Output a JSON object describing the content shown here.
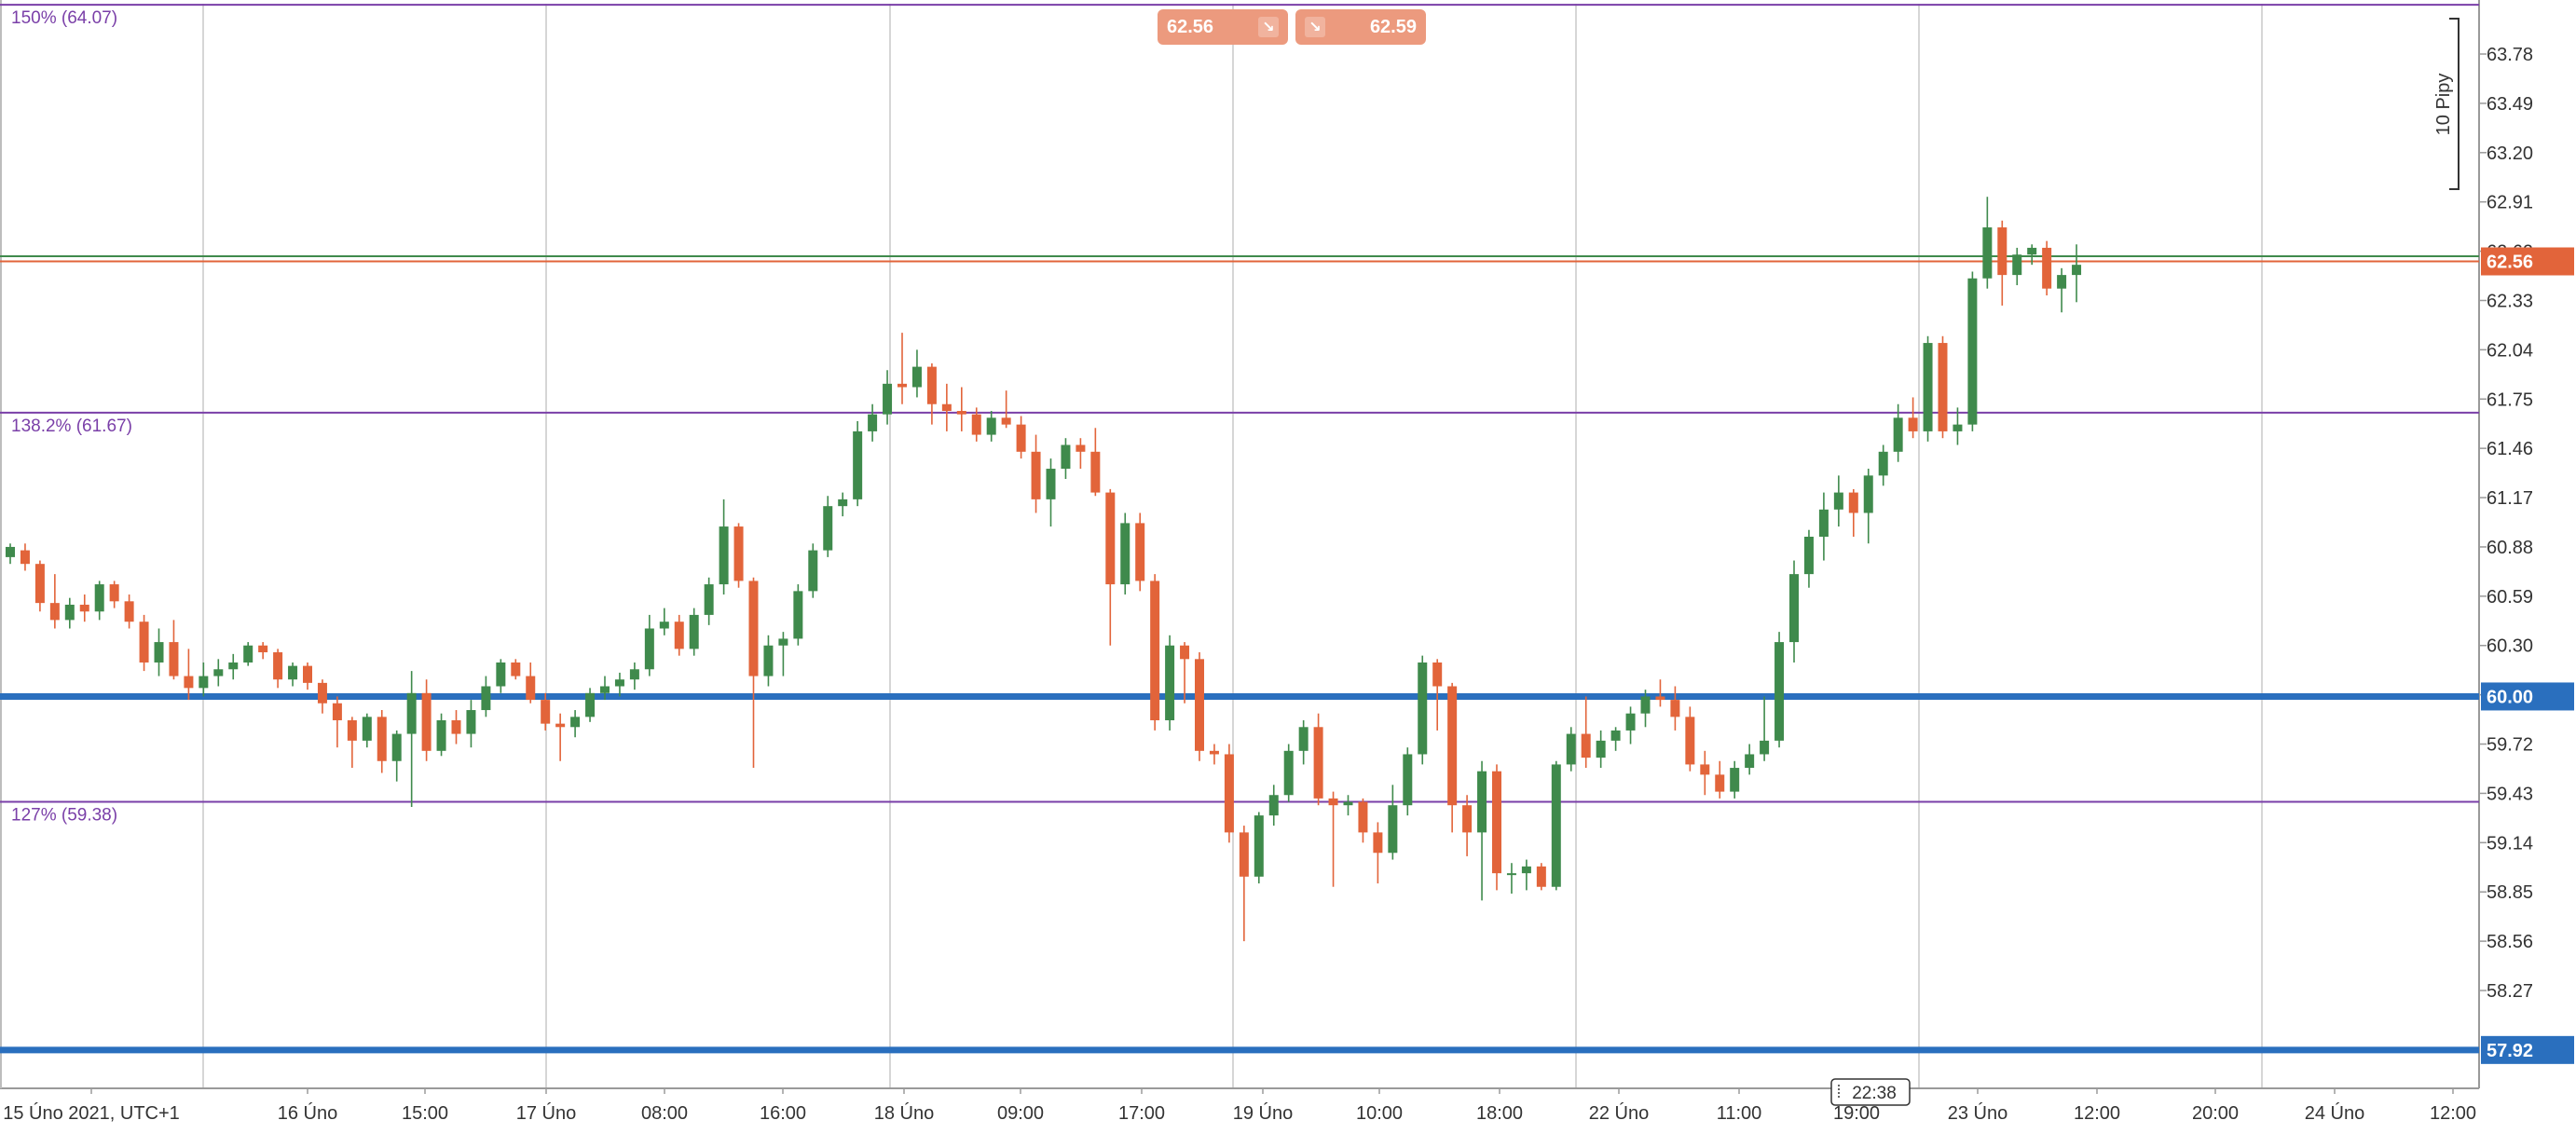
{
  "chart_data": {
    "type": "candlestick",
    "title": "",
    "price_range": [
      57.5,
      64.2
    ],
    "grid": true,
    "y_ticks": [
      "63.78",
      "63.49",
      "63.20",
      "62.91",
      "62.62",
      "62.33",
      "62.04",
      "61.75",
      "61.46",
      "61.17",
      "60.88",
      "60.59",
      "60.30",
      "60.01",
      "59.72",
      "59.43",
      "59.14",
      "58.85",
      "58.56",
      "58.27"
    ],
    "x_ticks": [
      "15 Úno 2021, UTC+1",
      "16 Úno",
      "15:00",
      "17 Úno",
      "08:00",
      "16:00",
      "18 Úno",
      "09:00",
      "17:00",
      "19 Úno",
      "10:00",
      "18:00",
      "22 Úno",
      "11:00",
      "19:00",
      "23 Úno",
      "12:00",
      "20:00",
      "24 Úno",
      "12:00"
    ],
    "fib_levels": [
      {
        "label": "150% (64.07)",
        "value": 64.07
      },
      {
        "label": "138.2% (61.67)",
        "value": 61.67
      },
      {
        "label": "127% (59.38)",
        "value": 59.38
      }
    ],
    "horizontal_levels": [
      {
        "label": "60.00",
        "value": 60.0,
        "color": "#2a6fbe"
      },
      {
        "label": "57.92",
        "value": 57.92,
        "color": "#2a6fbe"
      }
    ],
    "current_price": {
      "label": "62.56",
      "value": 62.56,
      "color": "#e2643a"
    },
    "ask_line": 62.59,
    "bid_box": "62.56",
    "ask_box": "62.59",
    "pips_label": "10 Pipy",
    "crosshair_time": "22:38",
    "candles": [
      {
        "o": 60.82,
        "h": 60.9,
        "l": 60.78,
        "c": 60.88
      },
      {
        "o": 60.86,
        "h": 60.9,
        "l": 60.74,
        "c": 60.78
      },
      {
        "o": 60.78,
        "h": 60.8,
        "l": 60.5,
        "c": 60.55
      },
      {
        "o": 60.55,
        "h": 60.72,
        "l": 60.4,
        "c": 60.45
      },
      {
        "o": 60.45,
        "h": 60.58,
        "l": 60.4,
        "c": 60.54
      },
      {
        "o": 60.54,
        "h": 60.6,
        "l": 60.44,
        "c": 60.5
      },
      {
        "o": 60.5,
        "h": 60.68,
        "l": 60.45,
        "c": 60.66
      },
      {
        "o": 60.66,
        "h": 60.68,
        "l": 60.52,
        "c": 60.56
      },
      {
        "o": 60.56,
        "h": 60.6,
        "l": 60.4,
        "c": 60.44
      },
      {
        "o": 60.44,
        "h": 60.48,
        "l": 60.15,
        "c": 60.2
      },
      {
        "o": 60.2,
        "h": 60.4,
        "l": 60.12,
        "c": 60.32
      },
      {
        "o": 60.32,
        "h": 60.45,
        "l": 60.1,
        "c": 60.12
      },
      {
        "o": 60.12,
        "h": 60.28,
        "l": 59.98,
        "c": 60.05
      },
      {
        "o": 60.05,
        "h": 60.2,
        "l": 60.0,
        "c": 60.12
      },
      {
        "o": 60.12,
        "h": 60.22,
        "l": 60.06,
        "c": 60.16
      },
      {
        "o": 60.16,
        "h": 60.25,
        "l": 60.1,
        "c": 60.2
      },
      {
        "o": 60.2,
        "h": 60.32,
        "l": 60.18,
        "c": 60.3
      },
      {
        "o": 60.3,
        "h": 60.32,
        "l": 60.22,
        "c": 60.26
      },
      {
        "o": 60.26,
        "h": 60.28,
        "l": 60.05,
        "c": 60.1
      },
      {
        "o": 60.1,
        "h": 60.2,
        "l": 60.06,
        "c": 60.18
      },
      {
        "o": 60.18,
        "h": 60.2,
        "l": 60.04,
        "c": 60.08
      },
      {
        "o": 60.08,
        "h": 60.1,
        "l": 59.9,
        "c": 59.96
      },
      {
        "o": 59.96,
        "h": 60.0,
        "l": 59.7,
        "c": 59.86
      },
      {
        "o": 59.86,
        "h": 59.88,
        "l": 59.58,
        "c": 59.74
      },
      {
        "o": 59.74,
        "h": 59.9,
        "l": 59.7,
        "c": 59.88
      },
      {
        "o": 59.88,
        "h": 59.92,
        "l": 59.55,
        "c": 59.62
      },
      {
        "o": 59.62,
        "h": 59.8,
        "l": 59.5,
        "c": 59.78
      },
      {
        "o": 59.78,
        "h": 60.15,
        "l": 59.35,
        "c": 60.02
      },
      {
        "o": 60.02,
        "h": 60.1,
        "l": 59.62,
        "c": 59.68
      },
      {
        "o": 59.68,
        "h": 59.9,
        "l": 59.65,
        "c": 59.86
      },
      {
        "o": 59.86,
        "h": 59.92,
        "l": 59.72,
        "c": 59.78
      },
      {
        "o": 59.78,
        "h": 59.98,
        "l": 59.7,
        "c": 59.92
      },
      {
        "o": 59.92,
        "h": 60.12,
        "l": 59.88,
        "c": 60.06
      },
      {
        "o": 60.06,
        "h": 60.22,
        "l": 60.02,
        "c": 60.2
      },
      {
        "o": 60.2,
        "h": 60.22,
        "l": 60.1,
        "c": 60.12
      },
      {
        "o": 60.12,
        "h": 60.2,
        "l": 59.96,
        "c": 59.98
      },
      {
        "o": 59.98,
        "h": 60.02,
        "l": 59.8,
        "c": 59.84
      },
      {
        "o": 59.84,
        "h": 59.9,
        "l": 59.62,
        "c": 59.82
      },
      {
        "o": 59.82,
        "h": 59.92,
        "l": 59.76,
        "c": 59.88
      },
      {
        "o": 59.88,
        "h": 60.05,
        "l": 59.85,
        "c": 60.02
      },
      {
        "o": 60.02,
        "h": 60.12,
        "l": 59.98,
        "c": 60.06
      },
      {
        "o": 60.06,
        "h": 60.14,
        "l": 60.0,
        "c": 60.1
      },
      {
        "o": 60.1,
        "h": 60.2,
        "l": 60.04,
        "c": 60.16
      },
      {
        "o": 60.16,
        "h": 60.48,
        "l": 60.12,
        "c": 60.4
      },
      {
        "o": 60.4,
        "h": 60.52,
        "l": 60.36,
        "c": 60.44
      },
      {
        "o": 60.44,
        "h": 60.48,
        "l": 60.24,
        "c": 60.28
      },
      {
        "o": 60.28,
        "h": 60.52,
        "l": 60.24,
        "c": 60.48
      },
      {
        "o": 60.48,
        "h": 60.7,
        "l": 60.42,
        "c": 60.66
      },
      {
        "o": 60.66,
        "h": 61.16,
        "l": 60.6,
        "c": 61.0
      },
      {
        "o": 61.0,
        "h": 61.02,
        "l": 60.64,
        "c": 60.68
      },
      {
        "o": 60.68,
        "h": 60.7,
        "l": 59.58,
        "c": 60.12
      },
      {
        "o": 60.12,
        "h": 60.36,
        "l": 60.06,
        "c": 60.3
      },
      {
        "o": 60.3,
        "h": 60.38,
        "l": 60.12,
        "c": 60.34
      },
      {
        "o": 60.34,
        "h": 60.66,
        "l": 60.3,
        "c": 60.62
      },
      {
        "o": 60.62,
        "h": 60.9,
        "l": 60.58,
        "c": 60.86
      },
      {
        "o": 60.86,
        "h": 61.18,
        "l": 60.82,
        "c": 61.12
      },
      {
        "o": 61.12,
        "h": 61.2,
        "l": 61.06,
        "c": 61.16
      },
      {
        "o": 61.16,
        "h": 61.62,
        "l": 61.12,
        "c": 61.56
      },
      {
        "o": 61.56,
        "h": 61.72,
        "l": 61.5,
        "c": 61.66
      },
      {
        "o": 61.66,
        "h": 61.92,
        "l": 61.6,
        "c": 61.84
      },
      {
        "o": 61.84,
        "h": 62.14,
        "l": 61.72,
        "c": 61.82
      },
      {
        "o": 61.82,
        "h": 62.04,
        "l": 61.76,
        "c": 61.94
      },
      {
        "o": 61.94,
        "h": 61.96,
        "l": 61.6,
        "c": 61.72
      },
      {
        "o": 61.72,
        "h": 61.84,
        "l": 61.56,
        "c": 61.68
      },
      {
        "o": 61.68,
        "h": 61.82,
        "l": 61.56,
        "c": 61.66
      },
      {
        "o": 61.66,
        "h": 61.7,
        "l": 61.5,
        "c": 61.54
      },
      {
        "o": 61.54,
        "h": 61.68,
        "l": 61.5,
        "c": 61.64
      },
      {
        "o": 61.64,
        "h": 61.8,
        "l": 61.58,
        "c": 61.6
      },
      {
        "o": 61.6,
        "h": 61.65,
        "l": 61.4,
        "c": 61.44
      },
      {
        "o": 61.44,
        "h": 61.54,
        "l": 61.08,
        "c": 61.16
      },
      {
        "o": 61.16,
        "h": 61.4,
        "l": 61.0,
        "c": 61.34
      },
      {
        "o": 61.34,
        "h": 61.52,
        "l": 61.28,
        "c": 61.48
      },
      {
        "o": 61.48,
        "h": 61.52,
        "l": 61.34,
        "c": 61.44
      },
      {
        "o": 61.44,
        "h": 61.58,
        "l": 61.18,
        "c": 61.2
      },
      {
        "o": 61.2,
        "h": 61.22,
        "l": 60.3,
        "c": 60.66
      },
      {
        "o": 60.66,
        "h": 61.08,
        "l": 60.6,
        "c": 61.02
      },
      {
        "o": 61.02,
        "h": 61.08,
        "l": 60.62,
        "c": 60.68
      },
      {
        "o": 60.68,
        "h": 60.72,
        "l": 59.8,
        "c": 59.86
      },
      {
        "o": 59.86,
        "h": 60.36,
        "l": 59.8,
        "c": 60.3
      },
      {
        "o": 60.3,
        "h": 60.32,
        "l": 59.96,
        "c": 60.22
      },
      {
        "o": 60.22,
        "h": 60.26,
        "l": 59.62,
        "c": 59.68
      },
      {
        "o": 59.68,
        "h": 59.72,
        "l": 59.6,
        "c": 59.66
      },
      {
        "o": 59.66,
        "h": 59.72,
        "l": 59.14,
        "c": 59.2
      },
      {
        "o": 59.2,
        "h": 59.24,
        "l": 58.56,
        "c": 58.94
      },
      {
        "o": 58.94,
        "h": 59.32,
        "l": 58.9,
        "c": 59.3
      },
      {
        "o": 59.3,
        "h": 59.48,
        "l": 59.24,
        "c": 59.42
      },
      {
        "o": 59.42,
        "h": 59.72,
        "l": 59.38,
        "c": 59.68
      },
      {
        "o": 59.68,
        "h": 59.86,
        "l": 59.6,
        "c": 59.82
      },
      {
        "o": 59.82,
        "h": 59.9,
        "l": 59.36,
        "c": 59.4
      },
      {
        "o": 59.4,
        "h": 59.44,
        "l": 58.88,
        "c": 59.36
      },
      {
        "o": 59.36,
        "h": 59.42,
        "l": 59.3,
        "c": 59.38
      },
      {
        "o": 59.38,
        "h": 59.4,
        "l": 59.14,
        "c": 59.2
      },
      {
        "o": 59.2,
        "h": 59.26,
        "l": 58.9,
        "c": 59.08
      },
      {
        "o": 59.08,
        "h": 59.48,
        "l": 59.04,
        "c": 59.36
      },
      {
        "o": 59.36,
        "h": 59.7,
        "l": 59.3,
        "c": 59.66
      },
      {
        "o": 59.66,
        "h": 60.24,
        "l": 59.6,
        "c": 60.2
      },
      {
        "o": 60.2,
        "h": 60.22,
        "l": 59.8,
        "c": 60.06
      },
      {
        "o": 60.06,
        "h": 60.08,
        "l": 59.2,
        "c": 59.36
      },
      {
        "o": 59.36,
        "h": 59.42,
        "l": 59.06,
        "c": 59.2
      },
      {
        "o": 59.2,
        "h": 59.62,
        "l": 58.8,
        "c": 59.56
      },
      {
        "o": 59.56,
        "h": 59.6,
        "l": 58.86,
        "c": 58.96
      },
      {
        "o": 58.96,
        "h": 59.02,
        "l": 58.84,
        "c": 58.96
      },
      {
        "o": 58.96,
        "h": 59.04,
        "l": 58.86,
        "c": 59.0
      },
      {
        "o": 59.0,
        "h": 59.02,
        "l": 58.86,
        "c": 58.88
      },
      {
        "o": 58.88,
        "h": 59.62,
        "l": 58.86,
        "c": 59.6
      },
      {
        "o": 59.6,
        "h": 59.82,
        "l": 59.56,
        "c": 59.78
      },
      {
        "o": 59.78,
        "h": 60.0,
        "l": 59.58,
        "c": 59.64
      },
      {
        "o": 59.64,
        "h": 59.8,
        "l": 59.58,
        "c": 59.74
      },
      {
        "o": 59.74,
        "h": 59.82,
        "l": 59.68,
        "c": 59.8
      },
      {
        "o": 59.8,
        "h": 59.94,
        "l": 59.72,
        "c": 59.9
      },
      {
        "o": 59.9,
        "h": 60.04,
        "l": 59.82,
        "c": 60.0
      },
      {
        "o": 60.0,
        "h": 60.1,
        "l": 59.94,
        "c": 59.98
      },
      {
        "o": 59.98,
        "h": 60.06,
        "l": 59.8,
        "c": 59.88
      },
      {
        "o": 59.88,
        "h": 59.94,
        "l": 59.56,
        "c": 59.6
      },
      {
        "o": 59.6,
        "h": 59.68,
        "l": 59.42,
        "c": 59.54
      },
      {
        "o": 59.54,
        "h": 59.62,
        "l": 59.4,
        "c": 59.44
      },
      {
        "o": 59.44,
        "h": 59.62,
        "l": 59.4,
        "c": 59.58
      },
      {
        "o": 59.58,
        "h": 59.72,
        "l": 59.54,
        "c": 59.66
      },
      {
        "o": 59.66,
        "h": 60.0,
        "l": 59.62,
        "c": 59.74
      },
      {
        "o": 59.74,
        "h": 60.38,
        "l": 59.7,
        "c": 60.32
      },
      {
        "o": 60.32,
        "h": 60.8,
        "l": 60.2,
        "c": 60.72
      },
      {
        "o": 60.72,
        "h": 60.98,
        "l": 60.64,
        "c": 60.94
      },
      {
        "o": 60.94,
        "h": 61.2,
        "l": 60.8,
        "c": 61.1
      },
      {
        "o": 61.1,
        "h": 61.3,
        "l": 61.0,
        "c": 61.2
      },
      {
        "o": 61.2,
        "h": 61.22,
        "l": 60.94,
        "c": 61.08
      },
      {
        "o": 61.08,
        "h": 61.34,
        "l": 60.9,
        "c": 61.3
      },
      {
        "o": 61.3,
        "h": 61.48,
        "l": 61.24,
        "c": 61.44
      },
      {
        "o": 61.44,
        "h": 61.72,
        "l": 61.38,
        "c": 61.64
      },
      {
        "o": 61.64,
        "h": 61.76,
        "l": 61.52,
        "c": 61.56
      },
      {
        "o": 61.56,
        "h": 62.12,
        "l": 61.5,
        "c": 62.08
      },
      {
        "o": 62.08,
        "h": 62.12,
        "l": 61.52,
        "c": 61.56
      },
      {
        "o": 61.56,
        "h": 61.7,
        "l": 61.48,
        "c": 61.6
      },
      {
        "o": 61.6,
        "h": 62.5,
        "l": 61.56,
        "c": 62.46
      },
      {
        "o": 62.46,
        "h": 62.94,
        "l": 62.4,
        "c": 62.76
      },
      {
        "o": 62.76,
        "h": 62.8,
        "l": 62.3,
        "c": 62.48
      },
      {
        "o": 62.48,
        "h": 62.64,
        "l": 62.42,
        "c": 62.6
      },
      {
        "o": 62.6,
        "h": 62.66,
        "l": 62.54,
        "c": 62.64
      },
      {
        "o": 62.64,
        "h": 62.68,
        "l": 62.36,
        "c": 62.4
      },
      {
        "o": 62.4,
        "h": 62.52,
        "l": 62.26,
        "c": 62.48
      },
      {
        "o": 62.48,
        "h": 62.66,
        "l": 62.32,
        "c": 62.54
      }
    ]
  },
  "colors": {
    "bull": "#3f8a4c",
    "bear": "#e2643a",
    "fib": "#7a3fa8",
    "grid": "#c8c8c8",
    "level": "#2a6fbe"
  }
}
